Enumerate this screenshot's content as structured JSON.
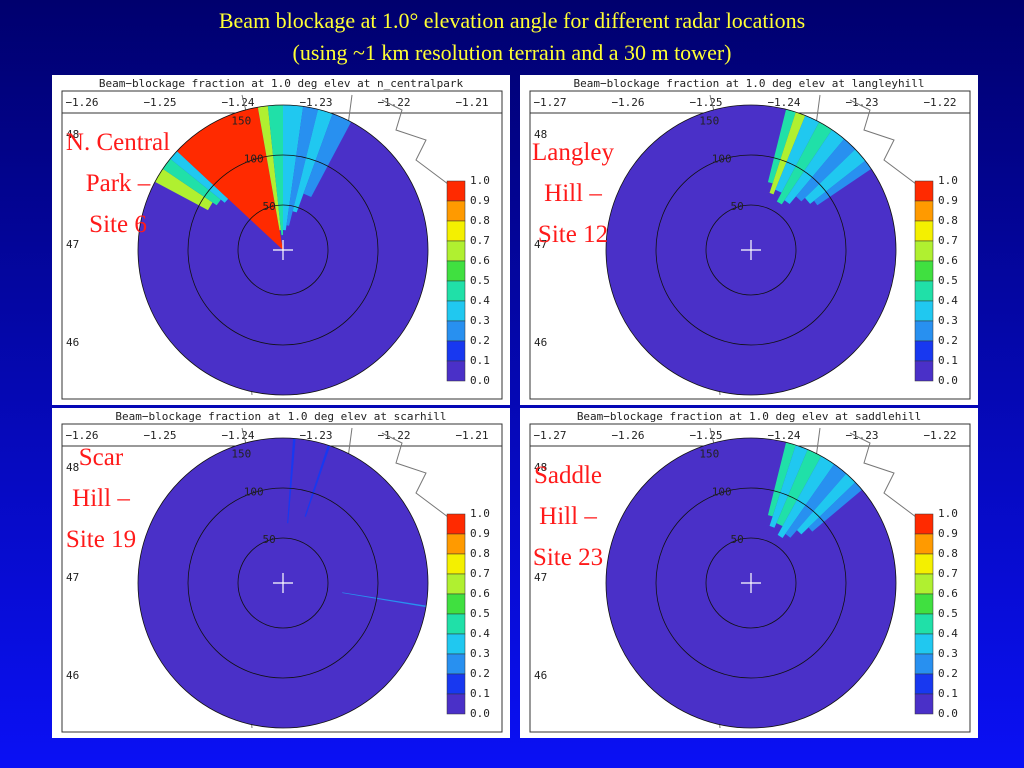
{
  "title_lines": [
    "Beam blockage at 1.0°   elevation angle for different radar locations",
    "(using ~1 km resolution terrain and a 30 m tower)"
  ],
  "colorbar": {
    "labels": [
      "1.0",
      "0.9",
      "0.8",
      "0.7",
      "0.6",
      "0.5",
      "0.4",
      "0.3",
      "0.2",
      "0.1",
      "0.0"
    ],
    "colors": [
      "#ff2a00",
      "#ff9a00",
      "#f4f000",
      "#b0f030",
      "#40e040",
      "#20e0a8",
      "#20c8f0",
      "#2890f0",
      "#1838f0",
      "#4a30c8"
    ]
  },
  "panels": [
    {
      "title": "Beam−blockage fraction at 1.0 deg elev at n_centralpark",
      "lon_labels": [
        "−1.26",
        "−1.25",
        "−1.24",
        "−1.23",
        "−1.22",
        "−1.21"
      ],
      "lat_labels": [
        "48",
        "47",
        "46"
      ],
      "ring_labels": [
        "50",
        "100",
        "150"
      ],
      "site_label": [
        "N. Central",
        "Park –",
        "Site 6"
      ]
    },
    {
      "title": "Beam−blockage fraction at 1.0 deg elev at langleyhill",
      "lon_labels": [
        "−1.27",
        "−1.26",
        "−1.25",
        "−1.24",
        "−1.23",
        "−1.22"
      ],
      "lat_labels": [
        "48",
        "47",
        "46"
      ],
      "ring_labels": [
        "50",
        "100",
        "150"
      ],
      "site_label": [
        "Langley",
        "Hill –",
        "Site 12"
      ]
    },
    {
      "title": "Beam−blockage fraction at 1.0 deg elev at scarhill",
      "lon_labels": [
        "−1.26",
        "−1.25",
        "−1.24",
        "−1.23",
        "−1.22",
        "−1.21"
      ],
      "lat_labels": [
        "48",
        "47",
        "46"
      ],
      "ring_labels": [
        "50",
        "100",
        "150"
      ],
      "site_label": [
        "Scar",
        "Hill –",
        "Site 19"
      ]
    },
    {
      "title": "Beam−blockage fraction at 1.0 deg elev at saddlehill",
      "lon_labels": [
        "−1.27",
        "−1.26",
        "−1.25",
        "−1.24",
        "−1.23",
        "−1.22"
      ],
      "lat_labels": [
        "48",
        "47",
        "46"
      ],
      "ring_labels": [
        "50",
        "100",
        "150"
      ],
      "site_label": [
        "Saddle",
        "Hill –",
        "Site 23"
      ]
    }
  ]
}
